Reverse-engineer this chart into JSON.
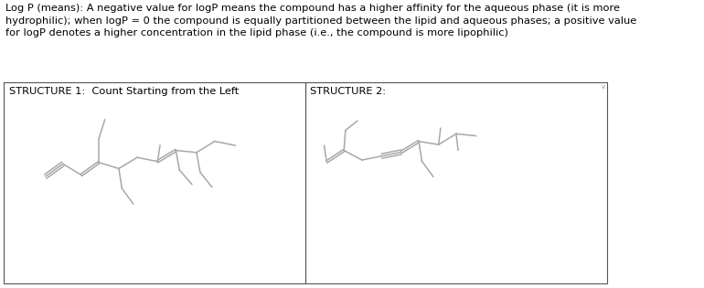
{
  "title_text": "Log P (means): A negative value for logP means the compound has a higher affinity for the aqueous phase (it is more\nhydrophilic); when logP = 0 the compound is equally partitioned between the lipid and aqueous phases; a positive value\nfor logP denotes a higher concentration in the lipid phase (i.e., the compound is more lipophilic)",
  "structure1_label": "STRUCTURE 1:  Count Starting from the Left",
  "structure2_label": "STRUCTURE 2:",
  "line_color": "#a8a8a8",
  "text_color": "#000000",
  "bg_color": "#ffffff",
  "box_color": "#555555",
  "title_fontsize": 8.2,
  "label_fontsize": 8.2,
  "line_width": 1.1
}
